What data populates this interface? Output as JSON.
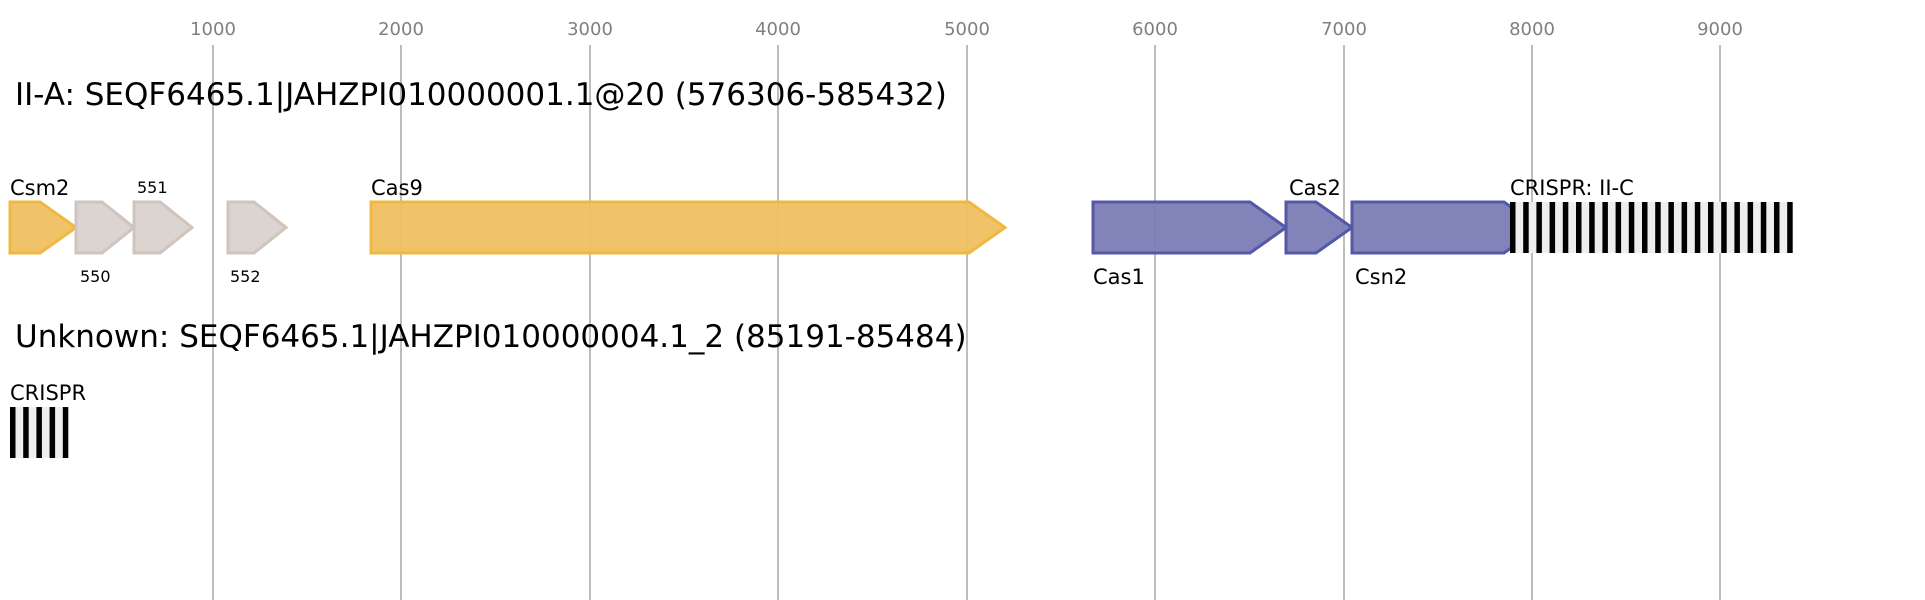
{
  "axis": {
    "ticks": [
      "1000",
      "2000",
      "3000",
      "4000",
      "5000",
      "6000",
      "7000",
      "8000",
      "9000"
    ]
  },
  "colors": {
    "type_ii_a": "#f0c060",
    "type_ii_a_stroke": "#f0b840",
    "unknown": "#dad2cd",
    "unknown_stroke": "#d0c5bc",
    "adaptation": "#7b7db5",
    "adaptation_stroke": "#5558a8",
    "crispr": "#000000"
  },
  "loci": [
    {
      "title": "II-A: SEQF6465.1|JAHZPI010000001.1@20 (576306-585432)",
      "genes": [
        {
          "label": "Csm2",
          "type": "type_ii_a"
        },
        {
          "label": "550",
          "type": "unknown"
        },
        {
          "label": "551",
          "type": "unknown"
        },
        {
          "label": "552",
          "type": "unknown"
        },
        {
          "label": "Cas9",
          "type": "type_ii_a"
        },
        {
          "label": "Cas1",
          "type": "adaptation"
        },
        {
          "label": "Cas2",
          "type": "adaptation"
        },
        {
          "label": "Csn2",
          "type": "adaptation"
        }
      ],
      "crispr": {
        "label": "CRISPR: II-C",
        "repeats": 22
      }
    },
    {
      "title": "Unknown: SEQF6465.1|JAHZPI010000004.1_2 (85191-85484)",
      "genes": [],
      "crispr": {
        "label": "CRISPR",
        "repeats": 5
      }
    }
  ]
}
